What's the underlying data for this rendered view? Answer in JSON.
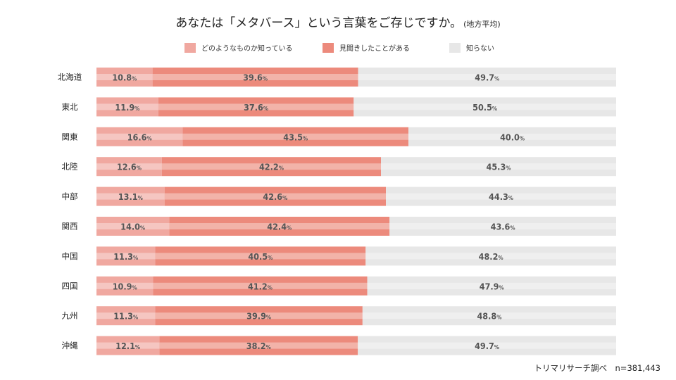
{
  "title": "あなたは「メタバース」という言葉をご存じですか。",
  "title_note": "(地方平均)",
  "source": "トリマリサーチ調べ　n=381,443",
  "colors": {
    "know_well": "#f0a8a0",
    "heard": "#ec8a7c",
    "dont_know": "#e7e7e7",
    "stripe": "rgba(255,255,255,0.35)",
    "label": "#555555"
  },
  "chart_data": {
    "type": "bar",
    "orientation": "horizontal",
    "stacked": "100%",
    "categories": [
      "北海道",
      "東北",
      "関東",
      "北陸",
      "中部",
      "関西",
      "中国",
      "四国",
      "九州",
      "沖縄"
    ],
    "series": [
      {
        "name": "どのようなものか知っている",
        "values": [
          10.8,
          11.9,
          16.6,
          12.6,
          13.1,
          14.0,
          11.3,
          10.9,
          11.3,
          12.1
        ]
      },
      {
        "name": "見聞きしたことがある",
        "values": [
          39.6,
          37.6,
          43.5,
          42.2,
          42.6,
          42.4,
          40.5,
          41.2,
          39.9,
          38.2
        ]
      },
      {
        "name": "知らない",
        "values": [
          49.7,
          50.5,
          40.0,
          45.3,
          44.3,
          43.6,
          48.2,
          47.9,
          48.8,
          49.7
        ]
      }
    ],
    "unit": "%",
    "legend_position": "top",
    "grid": false
  }
}
